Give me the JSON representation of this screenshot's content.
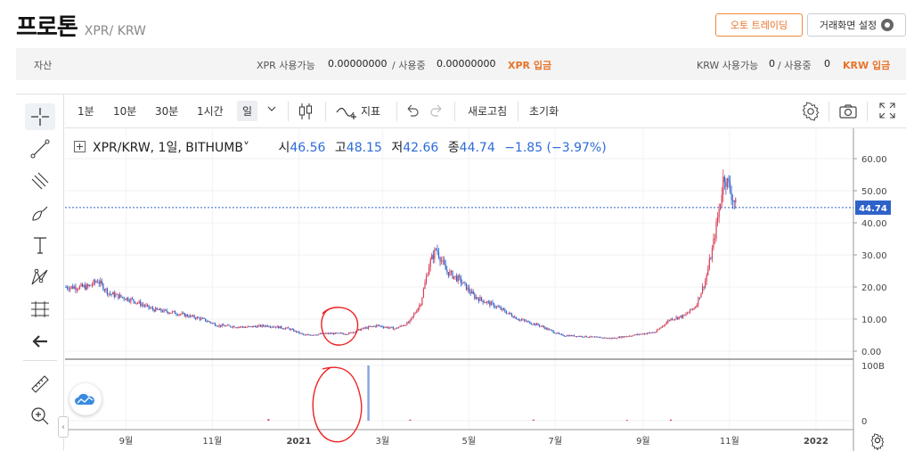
{
  "header": {
    "coin_name": "프로톤",
    "pair": "XPR/ KRW",
    "auto_trading_label": "오토 트레이딩",
    "screen_settings_label": "거래화면 설정"
  },
  "asset_bar": {
    "label": "자산",
    "xpr_available_label": "XPR 사용가능",
    "xpr_available": "0.00000000",
    "xpr_in_use_label": "/ 사용중",
    "xpr_in_use": "0.00000000",
    "xpr_deposit_label": "XPR 입금",
    "krw_available_label": "KRW 사용가능",
    "krw_available": "0",
    "krw_in_use_label": "/ 사용중",
    "krw_in_use": "0",
    "krw_deposit_label": "KRW 입금"
  },
  "toolbar": {
    "intervals": [
      "1분",
      "10분",
      "30분",
      "1시간",
      "일"
    ],
    "selected_interval": "일",
    "indicators_label": "지표",
    "refresh_label": "새로고침",
    "reset_label": "초기화"
  },
  "legend": {
    "symbol": "XPR/KRW, 1일, BITHUMB",
    "open_label": "시",
    "open": "46.56",
    "high_label": "고",
    "high": "48.15",
    "low_label": "저",
    "low": "42.66",
    "close_label": "종",
    "close": "44.74",
    "change": "−1.85 (−3.97%)"
  },
  "colors": {
    "up": "#d63d55",
    "down": "#2e62c9",
    "price_line": "#2e62c9",
    "accent": "#e8732a"
  },
  "chart_data": {
    "type": "candlestick",
    "symbol": "XPR/KRW",
    "interval": "1일",
    "exchange": "BITHUMB",
    "y_ticks": [
      "60.00",
      "50.00",
      "40.00",
      "30.00",
      "20.00",
      "10.00",
      "0.00"
    ],
    "ylim": [
      0,
      66
    ],
    "last_price": "44.74",
    "x_ticks": [
      "9월",
      "11월",
      "2021",
      "3월",
      "5월",
      "7월",
      "9월",
      "11월",
      "2022"
    ],
    "price_path": [
      [
        "2020-07-20",
        20
      ],
      [
        "2020-08-05",
        20
      ],
      [
        "2020-08-12",
        22
      ],
      [
        "2020-08-20",
        18
      ],
      [
        "2020-09-05",
        16
      ],
      [
        "2020-09-20",
        13
      ],
      [
        "2020-10-05",
        12
      ],
      [
        "2020-10-25",
        10
      ],
      [
        "2020-11-05",
        8
      ],
      [
        "2020-11-25",
        7.5
      ],
      [
        "2020-12-10",
        8
      ],
      [
        "2020-12-25",
        7
      ],
      [
        "2021-01-05",
        5
      ],
      [
        "2021-01-20",
        5.5
      ],
      [
        "2021-02-05",
        5.5
      ],
      [
        "2021-02-15",
        7
      ],
      [
        "2021-02-25",
        8
      ],
      [
        "2021-03-10",
        7
      ],
      [
        "2021-03-20",
        9
      ],
      [
        "2021-03-28",
        15
      ],
      [
        "2021-04-03",
        27
      ],
      [
        "2021-04-08",
        32
      ],
      [
        "2021-04-15",
        25
      ],
      [
        "2021-04-25",
        22
      ],
      [
        "2021-05-05",
        17
      ],
      [
        "2021-05-20",
        14
      ],
      [
        "2021-06-05",
        10
      ],
      [
        "2021-06-20",
        8
      ],
      [
        "2021-07-05",
        5
      ],
      [
        "2021-07-25",
        4.5
      ],
      [
        "2021-08-10",
        4
      ],
      [
        "2021-08-25",
        5
      ],
      [
        "2021-09-10",
        6
      ],
      [
        "2021-09-20",
        10
      ],
      [
        "2021-09-30",
        11
      ],
      [
        "2021-10-08",
        14
      ],
      [
        "2021-10-15",
        22
      ],
      [
        "2021-10-20",
        32
      ],
      [
        "2021-10-25",
        45
      ],
      [
        "2021-10-28",
        55
      ],
      [
        "2021-10-31",
        52
      ],
      [
        "2021-11-03",
        48
      ],
      [
        "2021-11-06",
        44.74
      ]
    ],
    "volume_ticks": [
      "100B",
      "0"
    ],
    "volume_spike": [
      "2021-02-19",
      100
    ]
  }
}
